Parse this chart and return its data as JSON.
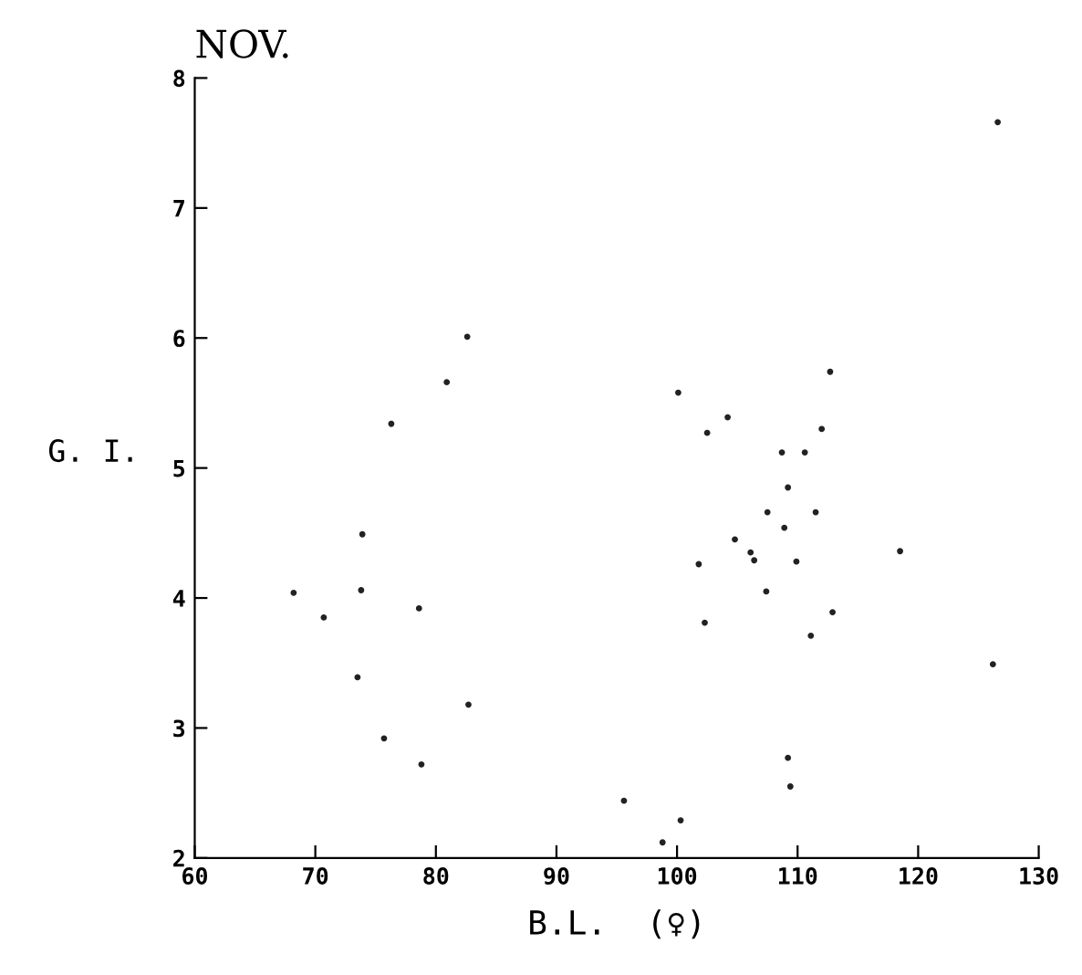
{
  "chart_data": {
    "type": "scatter",
    "title": "NOV.",
    "xlabel": "B.L.  (♀)",
    "ylabel": "G. I.",
    "x": [
      68.2,
      70.7,
      73.9,
      73.8,
      73.5,
      78.6,
      75.7,
      78.8,
      82.7,
      82.6,
      80.9,
      76.3,
      126.6,
      112.7,
      100.1,
      104.2,
      102.5,
      112.0,
      108.7,
      110.6,
      109.2,
      107.5,
      111.5,
      108.9,
      104.8,
      106.1,
      106.4,
      101.8,
      109.9,
      118.5,
      107.4,
      112.9,
      102.3,
      111.1,
      126.2,
      109.2,
      109.4,
      95.6,
      100.3,
      98.8
    ],
    "values": [
      4.04,
      3.85,
      4.49,
      4.06,
      3.39,
      3.92,
      2.92,
      2.72,
      3.18,
      6.01,
      5.66,
      5.34,
      7.66,
      5.74,
      5.58,
      5.39,
      5.27,
      5.3,
      5.12,
      5.12,
      4.85,
      4.66,
      4.66,
      4.54,
      4.45,
      4.35,
      4.29,
      4.26,
      4.28,
      4.36,
      4.05,
      3.89,
      3.81,
      3.71,
      3.49,
      2.77,
      2.55,
      2.44,
      2.29,
      2.12
    ],
    "color": "#222222",
    "marker": "circle",
    "xlim": [
      60,
      130
    ],
    "xticks": [
      60,
      70,
      80,
      90,
      100,
      110,
      120,
      130
    ],
    "ylim": [
      2,
      8
    ],
    "yticks": [
      2,
      3,
      4,
      5,
      6,
      7,
      8
    ],
    "grid": false
  }
}
